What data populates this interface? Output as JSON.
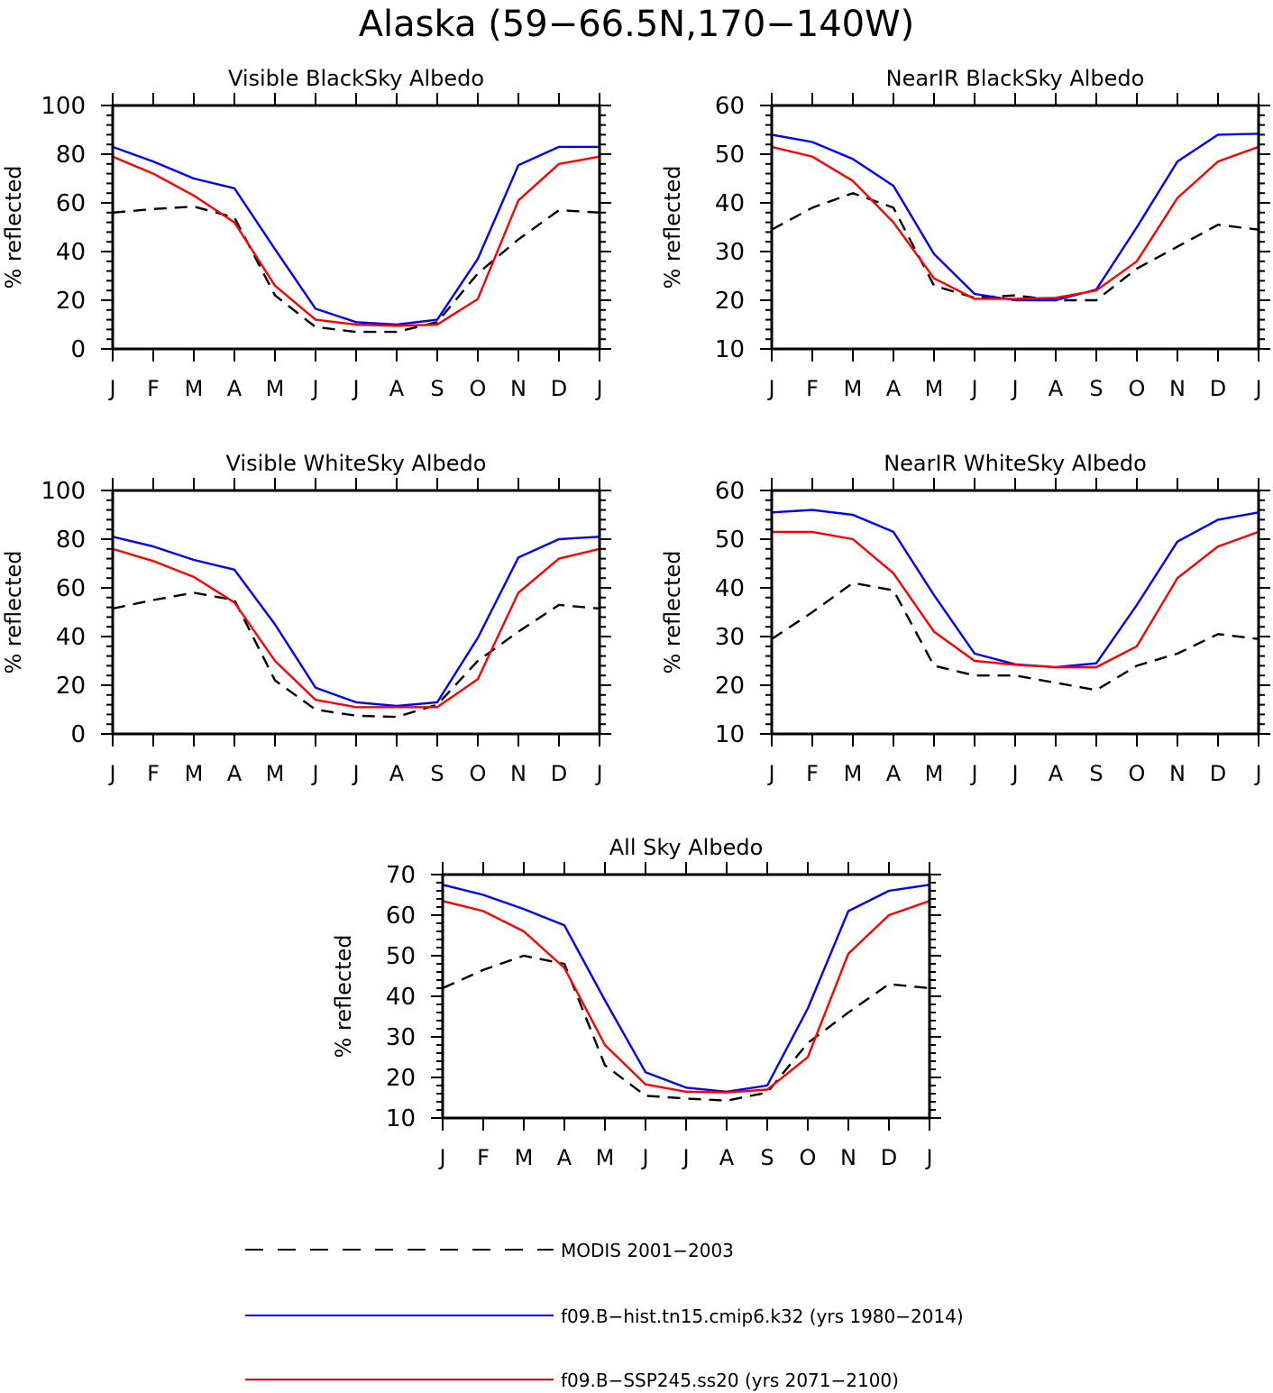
{
  "figure_title": "Alaska (59−66.5N,170−140W)",
  "months": [
    "J",
    "F",
    "M",
    "A",
    "M",
    "J",
    "J",
    "A",
    "S",
    "O",
    "N",
    "D",
    "J"
  ],
  "colors": {
    "modis": "#000000",
    "hist": "#0000ff",
    "ssp": "#ff0000"
  },
  "legend": {
    "modis": "MODIS 2001−2003",
    "hist": "f09.B−hist.tn15.cmip6.k32 (yrs 1980−2014)",
    "ssp": "f09.B−SSP245.ss20 (yrs 2071−2100)"
  },
  "chart_data": [
    {
      "type": "line",
      "title": "Visible BlackSky Albedo",
      "ylabel": "% reflected",
      "ylim": [
        0,
        100
      ],
      "yticks": [
        0,
        20,
        40,
        60,
        80,
        100
      ],
      "series": [
        {
          "key": "modis",
          "values": [
            56,
            57.5,
            58.5,
            54,
            22,
            9,
            7,
            7,
            11,
            31,
            45,
            57,
            56
          ]
        },
        {
          "key": "hist",
          "values": [
            83,
            77,
            70,
            66,
            41,
            16.5,
            11,
            10,
            12,
            37,
            75.5,
            83,
            83
          ]
        },
        {
          "key": "ssp",
          "values": [
            79,
            72,
            63,
            52,
            26,
            12,
            10,
            9.5,
            10,
            20.5,
            61,
            76,
            79
          ]
        }
      ]
    },
    {
      "type": "line",
      "title": "NearIR BlackSky Albedo",
      "ylabel": "% reflected",
      "ylim": [
        10,
        60
      ],
      "yticks": [
        10,
        20,
        30,
        40,
        50,
        60
      ],
      "series": [
        {
          "key": "modis",
          "values": [
            34.5,
            39,
            42,
            39,
            23,
            20.5,
            21,
            20,
            20,
            26.5,
            31,
            35.5,
            34.5
          ]
        },
        {
          "key": "hist",
          "values": [
            54,
            52.5,
            49,
            43.5,
            29.5,
            21.3,
            20,
            20,
            22.2,
            35,
            48.5,
            54,
            54.2
          ]
        },
        {
          "key": "ssp",
          "values": [
            51.5,
            49.5,
            44.5,
            36,
            24.5,
            20.3,
            20.3,
            20.5,
            22,
            28,
            41,
            48.5,
            51.5
          ]
        }
      ]
    },
    {
      "type": "line",
      "title": "Visible WhiteSky Albedo",
      "ylabel": "% reflected",
      "ylim": [
        0,
        100
      ],
      "yticks": [
        0,
        20,
        40,
        60,
        80,
        100
      ],
      "series": [
        {
          "key": "modis",
          "values": [
            51.5,
            55,
            58,
            55,
            22,
            10,
            7.5,
            7,
            12,
            30,
            42,
            53,
            51.5
          ]
        },
        {
          "key": "hist",
          "values": [
            81,
            77,
            71.5,
            67.5,
            45,
            19,
            13,
            11.5,
            13,
            39.5,
            72.5,
            80,
            81
          ]
        },
        {
          "key": "ssp",
          "values": [
            76,
            71,
            64.5,
            54,
            30,
            14,
            11,
            11,
            11,
            22.5,
            58,
            72,
            76
          ]
        }
      ]
    },
    {
      "type": "line",
      "title": "NearIR WhiteSky Albedo",
      "ylabel": "% reflected",
      "ylim": [
        10,
        60
      ],
      "yticks": [
        10,
        20,
        30,
        40,
        50,
        60
      ],
      "series": [
        {
          "key": "modis",
          "values": [
            29.5,
            35,
            41,
            39.5,
            24,
            22,
            22,
            20.5,
            19,
            24,
            26.5,
            30.5,
            29.5
          ]
        },
        {
          "key": "hist",
          "values": [
            55.5,
            56,
            55,
            51.5,
            38.5,
            26.5,
            24.3,
            23.7,
            24.5,
            36.5,
            49.5,
            54,
            55.5
          ]
        },
        {
          "key": "ssp",
          "values": [
            51.5,
            51.5,
            50,
            43,
            31,
            25,
            24.2,
            23.7,
            23.7,
            28,
            42,
            48.5,
            51.5
          ]
        }
      ]
    },
    {
      "type": "line",
      "title": "All Sky Albedo",
      "ylabel": "% reflected",
      "ylim": [
        10,
        70
      ],
      "yticks": [
        10,
        20,
        30,
        40,
        50,
        60,
        70
      ],
      "series": [
        {
          "key": "modis",
          "values": [
            42,
            46.5,
            50,
            48,
            23,
            15.5,
            14.8,
            14.3,
            16.3,
            28.5,
            36,
            43,
            42
          ]
        },
        {
          "key": "hist",
          "values": [
            67.5,
            65,
            61.5,
            57.5,
            39,
            21.3,
            17.5,
            16.5,
            18,
            37,
            61,
            66,
            67.5
          ]
        },
        {
          "key": "ssp",
          "values": [
            63.5,
            61,
            56,
            47,
            28,
            18.3,
            16.5,
            16.3,
            17,
            25,
            50.5,
            60,
            63.5
          ]
        }
      ]
    }
  ]
}
